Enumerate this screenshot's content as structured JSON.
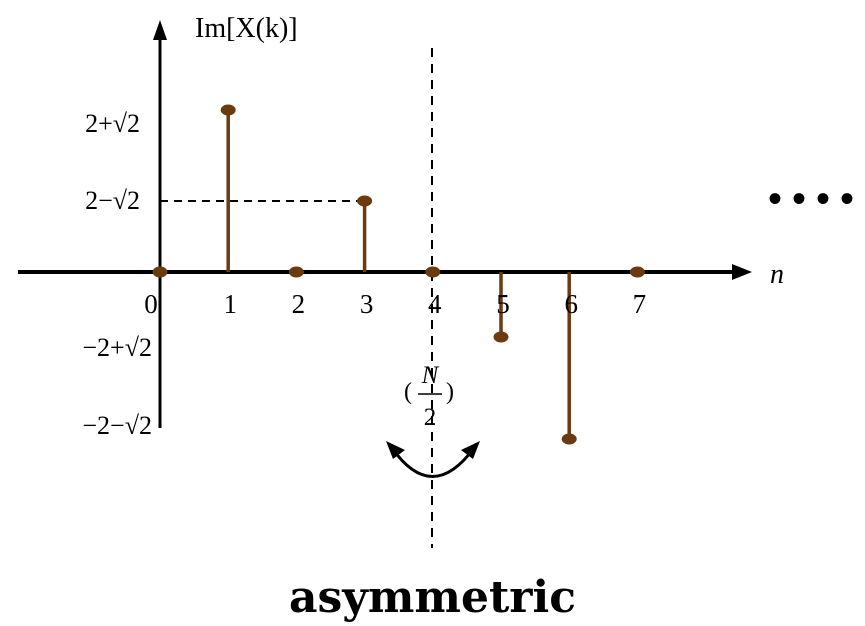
{
  "chart_data": {
    "type": "stem",
    "title": "",
    "ylabel": "Im[X(k)]",
    "xlabel": "n",
    "x": [
      0,
      1,
      2,
      3,
      4,
      5,
      6,
      7
    ],
    "x_tick_labels": [
      "0",
      "1",
      "2",
      "3",
      "4",
      "5",
      "6",
      "7"
    ],
    "values": [
      0,
      3.414,
      0,
      0.586,
      0,
      -0.586,
      -3.414,
      0
    ],
    "y_tick_labels": [
      {
        "value": 3.414,
        "text": "2+√2"
      },
      {
        "value": 0.586,
        "text": "2−√2"
      },
      {
        "value": -0.586,
        "text": "−2+√2"
      },
      {
        "value": -3.414,
        "text": "−2−√2"
      }
    ],
    "symmetry_line": {
      "x": 4,
      "label_numerator": "N",
      "label_denominator": "2"
    },
    "continuation": "• • • •",
    "stem_color": "#6b3a0f",
    "caption": "asymmetric"
  }
}
